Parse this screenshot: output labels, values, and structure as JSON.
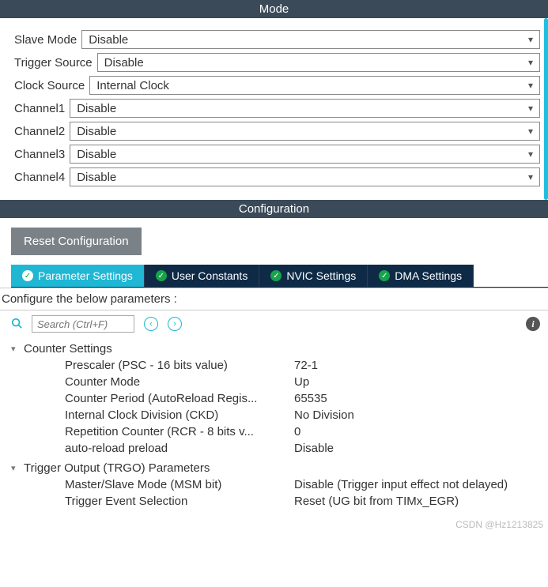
{
  "mode": {
    "header": "Mode",
    "rows": [
      {
        "label": "Slave Mode",
        "value": "Disable"
      },
      {
        "label": "Trigger Source",
        "value": "Disable"
      },
      {
        "label": "Clock Source",
        "value": "Internal Clock",
        "label_pad": "  "
      },
      {
        "label": "Channel1",
        "value": "Disable"
      },
      {
        "label": "Channel2",
        "value": "Disable"
      },
      {
        "label": "Channel3",
        "value": "Disable"
      },
      {
        "label": "Channel4",
        "value": "Disable"
      }
    ]
  },
  "config": {
    "header": "Configuration",
    "reset_label": "Reset Configuration",
    "tabs": [
      {
        "label": "Parameter Settings",
        "active": true
      },
      {
        "label": "User Constants",
        "active": false
      },
      {
        "label": "NVIC Settings",
        "active": false
      },
      {
        "label": "DMA Settings",
        "active": false
      }
    ],
    "hint": "Configure the below parameters :",
    "search_placeholder": "Search (Ctrl+F)",
    "groups": [
      {
        "title": "Counter Settings",
        "params": [
          {
            "label": "Prescaler (PSC - 16 bits value)",
            "value": "72-1"
          },
          {
            "label": "Counter Mode",
            "value": "Up"
          },
          {
            "label": "Counter Period (AutoReload Regis...",
            "value": "65535"
          },
          {
            "label": "Internal Clock Division (CKD)",
            "value": "No Division"
          },
          {
            "label": "Repetition Counter (RCR - 8 bits v...",
            "value": "0"
          },
          {
            "label": "auto-reload preload",
            "value": "Disable"
          }
        ]
      },
      {
        "title": "Trigger Output (TRGO) Parameters",
        "params": [
          {
            "label": "Master/Slave Mode (MSM bit)",
            "value": "Disable (Trigger input effect not delayed)"
          },
          {
            "label": "Trigger Event Selection",
            "value": "Reset (UG bit from TIMx_EGR)"
          }
        ]
      }
    ]
  },
  "watermark": "CSDN @Hz1213825"
}
